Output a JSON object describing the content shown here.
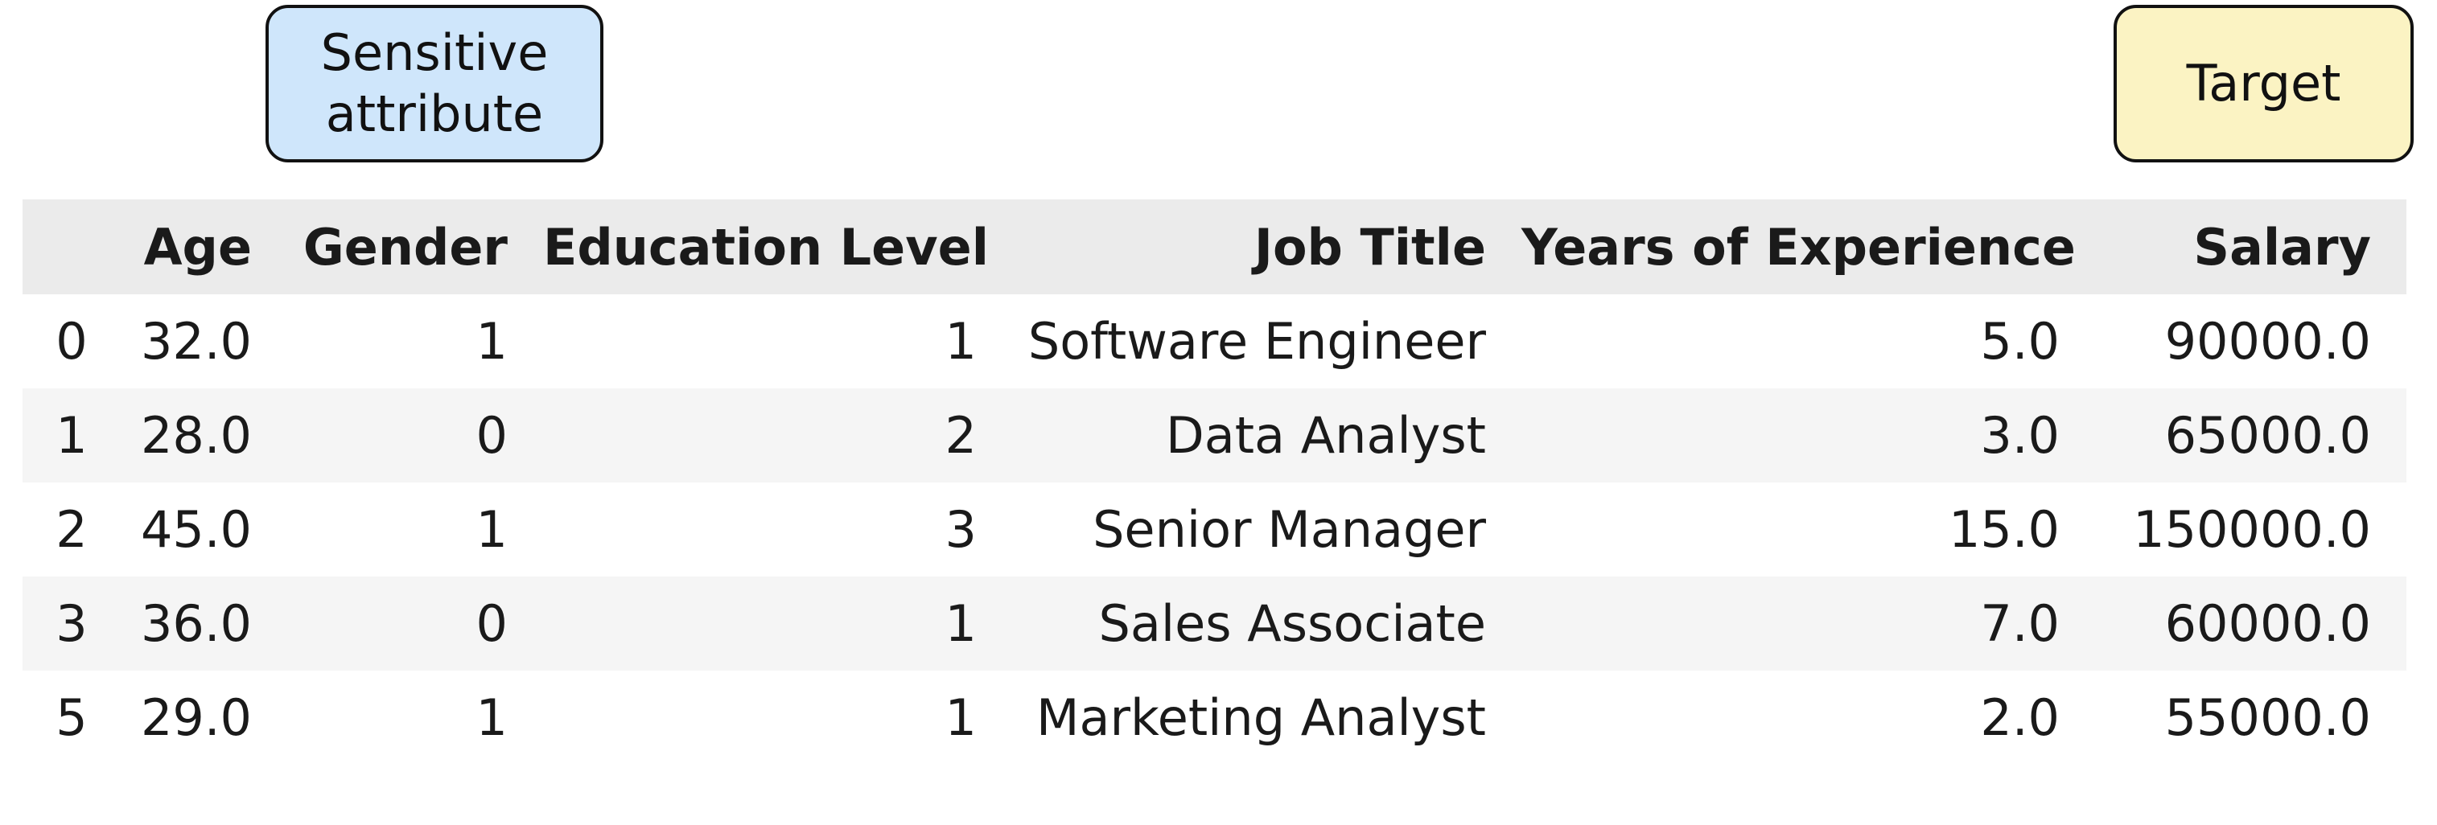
{
  "annotations": {
    "sensitive_line1": "Sensitive",
    "sensitive_line2": "attribute",
    "target": "Target"
  },
  "table": {
    "columns": [
      "",
      "Age",
      "Gender",
      "Education Level",
      "Job Title",
      "Years of Experience",
      "Salary"
    ],
    "rows": [
      [
        "0",
        "32.0",
        "1",
        "1",
        "Software Engineer",
        "5.0",
        "90000.0"
      ],
      [
        "1",
        "28.0",
        "0",
        "2",
        "Data Analyst",
        "3.0",
        "65000.0"
      ],
      [
        "2",
        "45.0",
        "1",
        "3",
        "Senior Manager",
        "15.0",
        "150000.0"
      ],
      [
        "3",
        "36.0",
        "0",
        "1",
        "Sales Associate",
        "7.0",
        "60000.0"
      ],
      [
        "5",
        "29.0",
        "1",
        "1",
        "Marketing Analyst",
        "2.0",
        "55000.0"
      ]
    ]
  },
  "colors": {
    "sensitive_fill": "#cfe6fb",
    "target_fill": "#fbf3c3",
    "header_bg": "#ebebeb",
    "stripe_bg": "#f5f5f5"
  }
}
